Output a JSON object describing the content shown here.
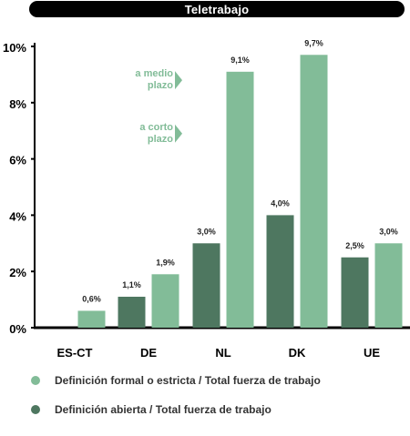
{
  "chart_data": {
    "type": "bar",
    "title": "Teletrabajo",
    "categories": [
      "ES-CT",
      "DE",
      "NL",
      "DK",
      "UE"
    ],
    "series": [
      {
        "name": "Definición abierta / Total fuerza de trabajo",
        "color": "#4e7760",
        "values": [
          null,
          1.1,
          3.0,
          4.0,
          2.5
        ],
        "labels": [
          "",
          "1,1%",
          "3,0%",
          "4,0%",
          "2,5%"
        ]
      },
      {
        "name": "Definición formal o estricta / Total fuerza de trabajo",
        "color": "#82bc98",
        "values": [
          0.6,
          1.9,
          9.1,
          9.7,
          3.0
        ],
        "labels": [
          "0,6%",
          "1,9%",
          "9,1%",
          "9,7%",
          "3,0%"
        ]
      }
    ],
    "ylim": [
      0,
      10
    ],
    "yticks": [
      "0%",
      "2%",
      "4%",
      "6%",
      "8%",
      "10%"
    ],
    "annotations": [
      {
        "text": [
          "a medio",
          "plazo"
        ],
        "value": 8.8,
        "arrow_color": "#82bc98"
      },
      {
        "text": [
          "a corto",
          "plazo"
        ],
        "value": 6.9,
        "arrow_color": "#82bc98"
      }
    ],
    "legend_position": "bottom"
  }
}
